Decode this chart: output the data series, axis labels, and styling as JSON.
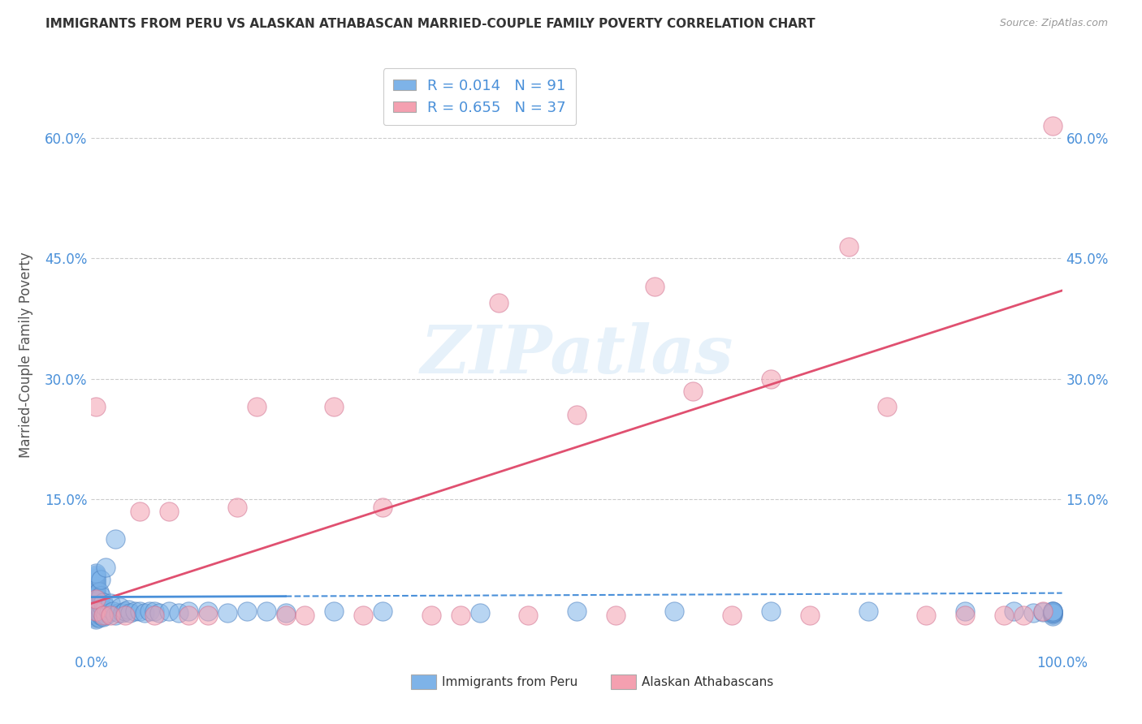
{
  "title": "IMMIGRANTS FROM PERU VS ALASKAN ATHABASCAN MARRIED-COUPLE FAMILY POVERTY CORRELATION CHART",
  "source": "Source: ZipAtlas.com",
  "ylabel": "Married-Couple Family Poverty",
  "y_tick_labels": [
    "15.0%",
    "30.0%",
    "45.0%",
    "60.0%"
  ],
  "y_tick_values": [
    0.15,
    0.3,
    0.45,
    0.6
  ],
  "xlim": [
    0.0,
    1.0
  ],
  "ylim": [
    -0.04,
    0.7
  ],
  "blue_R": 0.014,
  "blue_N": 91,
  "pink_R": 0.655,
  "pink_N": 37,
  "blue_color": "#7EB3E8",
  "pink_color": "#F4A0B0",
  "blue_edge_color": "#4A7FC0",
  "pink_edge_color": "#D07090",
  "blue_line_color": "#4A90D9",
  "pink_line_color": "#E05070",
  "legend_label_blue": "Immigrants from Peru",
  "legend_label_pink": "Alaskan Athabascans",
  "watermark": "ZIPatlas",
  "background_color": "#FFFFFF",
  "grid_color": "#CCCCCC",
  "title_color": "#333333",
  "axis_label_color": "#555555",
  "blue_scatter_x": [
    0.005,
    0.005,
    0.005,
    0.005,
    0.005,
    0.005,
    0.005,
    0.005,
    0.005,
    0.005,
    0.005,
    0.005,
    0.005,
    0.005,
    0.005,
    0.005,
    0.005,
    0.005,
    0.005,
    0.005,
    0.005,
    0.005,
    0.005,
    0.005,
    0.005,
    0.005,
    0.005,
    0.005,
    0.005,
    0.005,
    0.008,
    0.008,
    0.008,
    0.008,
    0.008,
    0.01,
    0.01,
    0.01,
    0.01,
    0.01,
    0.012,
    0.012,
    0.012,
    0.015,
    0.015,
    0.015,
    0.018,
    0.02,
    0.022,
    0.025,
    0.025,
    0.028,
    0.03,
    0.032,
    0.035,
    0.038,
    0.04,
    0.045,
    0.05,
    0.055,
    0.06,
    0.065,
    0.07,
    0.08,
    0.09,
    0.1,
    0.12,
    0.14,
    0.16,
    0.18,
    0.2,
    0.25,
    0.3,
    0.4,
    0.5,
    0.6,
    0.7,
    0.8,
    0.9,
    0.95,
    0.97,
    0.98,
    0.99,
    0.99,
    0.99,
    0.99,
    0.99,
    0.99,
    0.99,
    0.99,
    0.99
  ],
  "blue_scatter_y": [
    0.0,
    0.002,
    0.004,
    0.006,
    0.008,
    0.01,
    0.012,
    0.014,
    0.016,
    0.018,
    0.02,
    0.022,
    0.024,
    0.026,
    0.028,
    0.03,
    0.032,
    0.034,
    0.036,
    0.038,
    0.04,
    0.042,
    0.044,
    0.046,
    0.048,
    0.05,
    0.052,
    0.054,
    0.056,
    0.058,
    0.002,
    0.008,
    0.015,
    0.025,
    0.035,
    0.005,
    0.01,
    0.018,
    0.03,
    0.05,
    0.003,
    0.012,
    0.022,
    0.005,
    0.015,
    0.065,
    0.008,
    0.02,
    0.01,
    0.005,
    0.1,
    0.008,
    0.015,
    0.008,
    0.01,
    0.012,
    0.008,
    0.01,
    0.01,
    0.008,
    0.01,
    0.01,
    0.008,
    0.01,
    0.008,
    0.01,
    0.01,
    0.008,
    0.01,
    0.01,
    0.008,
    0.01,
    0.01,
    0.008,
    0.01,
    0.01,
    0.01,
    0.01,
    0.01,
    0.01,
    0.008,
    0.009,
    0.004,
    0.006,
    0.008,
    0.01,
    0.008,
    0.009,
    0.01,
    0.008,
    0.01
  ],
  "pink_scatter_x": [
    0.005,
    0.005,
    0.005,
    0.012,
    0.02,
    0.035,
    0.05,
    0.065,
    0.08,
    0.1,
    0.12,
    0.15,
    0.17,
    0.2,
    0.22,
    0.25,
    0.28,
    0.3,
    0.35,
    0.38,
    0.42,
    0.45,
    0.5,
    0.54,
    0.58,
    0.62,
    0.66,
    0.7,
    0.74,
    0.78,
    0.82,
    0.86,
    0.9,
    0.94,
    0.96,
    0.98,
    0.99
  ],
  "pink_scatter_y": [
    0.01,
    0.026,
    0.265,
    0.005,
    0.005,
    0.005,
    0.135,
    0.005,
    0.135,
    0.005,
    0.005,
    0.14,
    0.265,
    0.005,
    0.005,
    0.265,
    0.005,
    0.14,
    0.005,
    0.005,
    0.395,
    0.005,
    0.255,
    0.005,
    0.415,
    0.285,
    0.005,
    0.3,
    0.005,
    0.465,
    0.265,
    0.005,
    0.005,
    0.005,
    0.005,
    0.01,
    0.615
  ],
  "blue_trendline_x": [
    0.0,
    0.25,
    1.0
  ],
  "blue_trendline_y": [
    0.028,
    0.03,
    0.033
  ],
  "blue_trendline_styles": [
    "solid",
    "dashed"
  ],
  "pink_trendline_x": [
    0.0,
    1.0
  ],
  "pink_trendline_y": [
    0.02,
    0.41
  ]
}
